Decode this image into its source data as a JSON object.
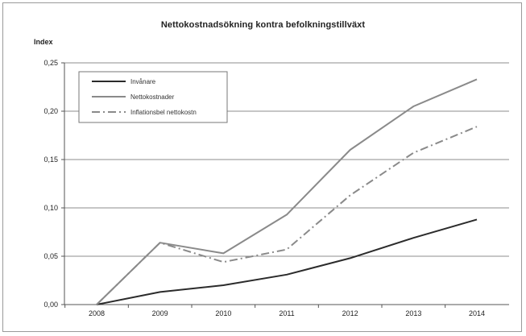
{
  "chart_data": {
    "type": "line",
    "title": "Nettokostnadsökning kontra befolkningstillväxt",
    "ylabel": "Index",
    "xlabel": "",
    "x": [
      "2008",
      "2009",
      "2010",
      "2011",
      "2012",
      "2013",
      "2014"
    ],
    "ylim": [
      0,
      0.25
    ],
    "yticks": [
      "0,00",
      "0,05",
      "0,10",
      "0,15",
      "0,20",
      "0,25"
    ],
    "grid": true,
    "legend_position": "top-left",
    "series": [
      {
        "name": "Invånare",
        "color": "#2b2b2b",
        "style": "solid",
        "values": [
          0.0,
          0.013,
          0.02,
          0.031,
          0.048,
          0.069,
          0.088
        ]
      },
      {
        "name": "Nettokostnader",
        "color": "#8a8a8a",
        "style": "solid",
        "values": [
          0.0,
          0.064,
          0.053,
          0.093,
          0.16,
          0.205,
          0.233
        ]
      },
      {
        "name": "Inflationsbel nettokostn",
        "color": "#8a8a8a",
        "style": "dashdot",
        "values": [
          0.0,
          0.064,
          0.044,
          0.057,
          0.113,
          0.157,
          0.184
        ]
      }
    ]
  }
}
